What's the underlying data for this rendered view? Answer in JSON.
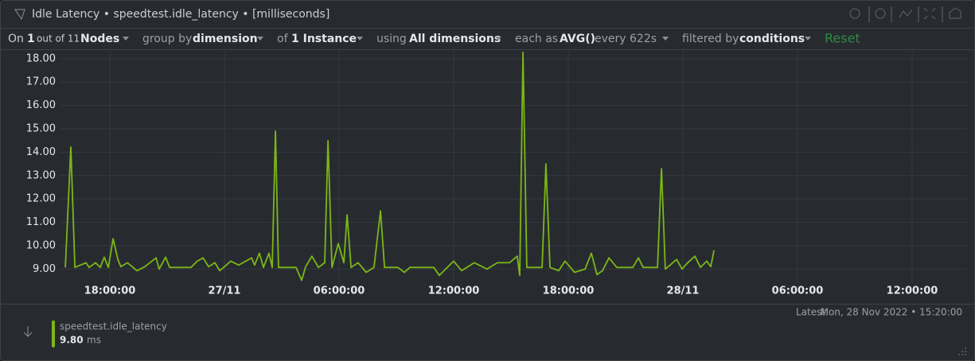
{
  "header": {
    "title": "Idle Latency • speedtest.idle_latency • [milliseconds]"
  },
  "toolbar": {
    "on": "On",
    "nodes_count": "1",
    "nodes_total": "out of 11",
    "nodes": "Nodes",
    "group_by": "group by",
    "group_value": "dimension",
    "of": "of",
    "instance": "1 Instance",
    "using": "using",
    "dimensions": "All dimensions",
    "each_as": "each as",
    "aggregation": "AVG()",
    "every": "every 622s",
    "filtered_by": "filtered by",
    "filter_value": "conditions",
    "reset": "Reset"
  },
  "chart_data": {
    "type": "line",
    "x": [
      15.67,
      15.96,
      16.17,
      16.75,
      16.92,
      17.25,
      17.5,
      17.71,
      17.92,
      18.17,
      18.42,
      18.58,
      18.92,
      19.42,
      19.83,
      20.42,
      20.58,
      20.92,
      21.13,
      22.25,
      22.58,
      22.88,
      23.17,
      23.5,
      23.75,
      24,
      24.33,
      24.75,
      25.42,
      25.58,
      25.83,
      26.04,
      26.33,
      26.5,
      26.67,
      26.83,
      27.75,
      28.04,
      28.25,
      28.58,
      28.92,
      29.25,
      29.42,
      29.63,
      29.96,
      30.25,
      30.42,
      30.63,
      31,
      31.42,
      31.83,
      32.17,
      32.38,
      33.08,
      33.42,
      33.71,
      34.96,
      35.25,
      35.58,
      36,
      36.42,
      37.08,
      37.75,
      38.29,
      38.92,
      39.33,
      39.46,
      39.63,
      39.83,
      40.63,
      40.83,
      41.04,
      41.5,
      41.83,
      42.33,
      42.88,
      43.21,
      43.5,
      43.79,
      44.13,
      44.54,
      45.38,
      45.67,
      45.92,
      46.67,
      46.88,
      47.08,
      47.67,
      47.96,
      48.25,
      48.63,
      48.92,
      49.25,
      49.46,
      49.63
    ],
    "series": [
      {
        "name": "speedtest.idle_latency",
        "color": "#7cb716",
        "values": [
          9.07,
          14.22,
          9.07,
          9.27,
          9.07,
          9.27,
          9.07,
          9.51,
          9.07,
          10.3,
          9.41,
          9.1,
          9.27,
          8.93,
          9.1,
          9.48,
          9.0,
          9.51,
          9.07,
          9.07,
          9.34,
          9.48,
          9.1,
          9.27,
          8.93,
          9.1,
          9.34,
          9.17,
          9.48,
          9.17,
          9.68,
          9.07,
          9.68,
          9.07,
          14.9,
          9.07,
          9.07,
          8.52,
          9.1,
          9.55,
          9.07,
          9.27,
          14.49,
          9.07,
          10.09,
          9.27,
          11.32,
          9.07,
          9.27,
          8.86,
          9.07,
          11.49,
          9.07,
          9.07,
          8.86,
          9.07,
          9.07,
          8.73,
          9.0,
          9.34,
          8.93,
          9.27,
          9.0,
          9.27,
          9.27,
          9.55,
          8.73,
          18.27,
          9.07,
          9.07,
          13.5,
          9.07,
          8.93,
          9.34,
          8.86,
          9.0,
          9.68,
          8.76,
          8.93,
          9.48,
          9.07,
          9.07,
          9.48,
          9.07,
          9.07,
          13.3,
          9.0,
          9.41,
          9.0,
          9.27,
          9.55,
          9.07,
          9.34,
          9.1,
          9.8
        ]
      }
    ],
    "xlim": [
      15.375,
      62.875
    ],
    "xticks": [
      {
        "value": 18,
        "label": "18:00:00"
      },
      {
        "value": 24,
        "label": "27/11"
      },
      {
        "value": 30,
        "label": "06:00:00"
      },
      {
        "value": 36,
        "label": "12:00:00"
      },
      {
        "value": 42,
        "label": "18:00:00"
      },
      {
        "value": 48,
        "label": "28/11"
      },
      {
        "value": 54,
        "label": "06:00:00"
      },
      {
        "value": 60,
        "label": "12:00:00"
      }
    ],
    "ylim": [
      8.4,
      18.3
    ],
    "yticks": [
      {
        "value": 9,
        "label": "9.00"
      },
      {
        "value": 10,
        "label": "10.00"
      },
      {
        "value": 11,
        "label": "11.00"
      },
      {
        "value": 12,
        "label": "12.00"
      },
      {
        "value": 13,
        "label": "13.00"
      },
      {
        "value": 14,
        "label": "14.00"
      },
      {
        "value": 15,
        "label": "15.00"
      },
      {
        "value": 16,
        "label": "16.00"
      },
      {
        "value": 17,
        "label": "17.00"
      },
      {
        "value": 18,
        "label": "18.00"
      }
    ],
    "grid": true
  },
  "footer": {
    "latest_label": "Latest:",
    "latest_value": "Mon, 28 Nov 2022 • 15:20:00",
    "legend_value": "9.80",
    "legend_unit": "ms"
  }
}
